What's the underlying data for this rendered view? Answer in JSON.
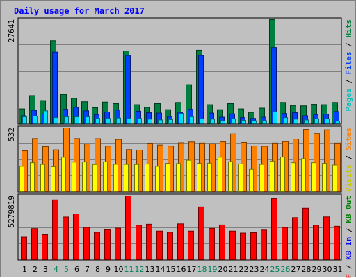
{
  "title": "Daily usage for March 2017",
  "colors": {
    "background": "#c0c0c0",
    "grid": "#808080",
    "hits": "#008040",
    "files": "#0040ff",
    "pages": "#00e0ff",
    "visits": "#ffff00",
    "sites": "#ff8000",
    "kb_in": "#008000",
    "kb_out": "#0000ff",
    "kbytes": "#ff0000",
    "weekend_label": "#00805c",
    "weekday_label": "#000000"
  },
  "chart_data": [
    {
      "type": "bar",
      "panel": "hits-files-pages",
      "legend_text": [
        {
          "text": "Pages",
          "color": "#00c0c0"
        },
        {
          "text": " / ",
          "color": "#000000"
        },
        {
          "text": "Files",
          "color": "#0040ff"
        },
        {
          "text": " / ",
          "color": "#000000"
        },
        {
          "text": "Hits",
          "color": "#008040"
        }
      ],
      "ymax_label": "27641",
      "ylim": [
        0,
        27641
      ],
      "categories": [
        "1",
        "2",
        "3",
        "4",
        "5",
        "6",
        "7",
        "8",
        "9",
        "10",
        "11",
        "12",
        "13",
        "14",
        "15",
        "16",
        "17",
        "18",
        "19",
        "20",
        "21",
        "22",
        "23",
        "24",
        "25",
        "26",
        "27",
        "28",
        "29",
        "30",
        "31"
      ],
      "series": [
        {
          "name": "Hits",
          "color": "#008040",
          "values": [
            4100,
            7600,
            6300,
            22100,
            7900,
            6900,
            6000,
            4400,
            5900,
            5500,
            19400,
            5200,
            4500,
            5500,
            3900,
            5800,
            10500,
            19600,
            5200,
            3900,
            5500,
            4100,
            3200,
            4300,
            27641,
            5800,
            5000,
            4900,
            5300,
            5200,
            5800
          ]
        },
        {
          "name": "Files",
          "color": "#0040ff",
          "values": [
            2300,
            3700,
            2800,
            19100,
            4000,
            4500,
            3600,
            2600,
            3300,
            3800,
            18200,
            3500,
            3100,
            3000,
            2100,
            3200,
            4000,
            18200,
            3000,
            1900,
            2800,
            1800,
            1600,
            1900,
            20300,
            2900,
            3100,
            2300,
            2600,
            2700,
            3400
          ]
        },
        {
          "name": "Pages",
          "color": "#00e0ff",
          "values": [
            2000,
            2200,
            3600,
            1800,
            2000,
            2000,
            2000,
            1600,
            1600,
            1700,
            1600,
            1600,
            1400,
            1200,
            1300,
            2900,
            2000,
            1500,
            1400,
            1000,
            1500,
            1100,
            1000,
            1000,
            3400,
            1800,
            1400,
            1200,
            1500,
            1500,
            900
          ]
        }
      ]
    },
    {
      "type": "bar",
      "panel": "visits-sites",
      "legend_text": [
        {
          "text": "Visits",
          "color": "#c8c800"
        },
        {
          "text": " / ",
          "color": "#000000"
        },
        {
          "text": "Sites",
          "color": "#ff8000"
        }
      ],
      "ymax_label": "532",
      "ylim": [
        0,
        532
      ],
      "categories": [
        "1",
        "2",
        "3",
        "4",
        "5",
        "6",
        "7",
        "8",
        "9",
        "10",
        "11",
        "12",
        "13",
        "14",
        "15",
        "16",
        "17",
        "18",
        "19",
        "20",
        "21",
        "22",
        "23",
        "24",
        "25",
        "26",
        "27",
        "28",
        "29",
        "30",
        "31"
      ],
      "series": [
        {
          "name": "Sites",
          "color": "#ff8000",
          "values": [
            343,
            444,
            378,
            351,
            532,
            444,
            400,
            443,
            382,
            437,
            353,
            349,
            406,
            391,
            382,
            409,
            416,
            407,
            402,
            417,
            482,
            412,
            383,
            381,
            407,
            419,
            440,
            520,
            485,
            517,
            407
          ]
        },
        {
          "name": "Visits",
          "color": "#ffff00",
          "values": [
            215,
            245,
            231,
            212,
            290,
            250,
            251,
            230,
            252,
            232,
            231,
            230,
            234,
            215,
            240,
            238,
            265,
            240,
            241,
            290,
            253,
            235,
            190,
            231,
            258,
            291,
            245,
            278,
            245,
            240,
            226
          ]
        }
      ]
    },
    {
      "type": "bar",
      "panel": "kbytes",
      "legend_text": [
        {
          "text": "KB F",
          "color": "#ff0000"
        },
        {
          "text": " / ",
          "color": "#000000"
        },
        {
          "text": "KB In",
          "color": "#0000ff"
        },
        {
          "text": " / ",
          "color": "#000000"
        },
        {
          "text": "KB Out",
          "color": "#008000"
        }
      ],
      "ymax_label": "5279819",
      "ylim": [
        0,
        5279819
      ],
      "categories": [
        "1",
        "2",
        "3",
        "4",
        "5",
        "6",
        "7",
        "8",
        "9",
        "10",
        "11",
        "12",
        "13",
        "14",
        "15",
        "16",
        "17",
        "18",
        "19",
        "20",
        "21",
        "22",
        "23",
        "24",
        "25",
        "26",
        "27",
        "28",
        "29",
        "30",
        "31"
      ],
      "series": [
        {
          "name": "KB F",
          "color": "#ff0000",
          "values": [
            1900000,
            2600000,
            2100000,
            4950000,
            3550000,
            3800000,
            2700000,
            2300000,
            2500000,
            2640000,
            5279819,
            2880000,
            2960000,
            2400000,
            2300000,
            2990000,
            2400000,
            4380000,
            2620000,
            2900000,
            2400000,
            2240000,
            2270000,
            2480000,
            5050000,
            2690000,
            3500000,
            4270000,
            2880000,
            3560000,
            2790000
          ]
        }
      ]
    }
  ],
  "x_axis": {
    "labels": [
      "1",
      "2",
      "3",
      "4",
      "5",
      "6",
      "7",
      "8",
      "9",
      "10",
      "11",
      "12",
      "13",
      "14",
      "15",
      "16",
      "17",
      "18",
      "19",
      "20",
      "21",
      "22",
      "23",
      "24",
      "25",
      "26",
      "27",
      "28",
      "29",
      "30",
      "31"
    ],
    "weekend_days": [
      4,
      5,
      11,
      12,
      18,
      19,
      25,
      26
    ]
  }
}
